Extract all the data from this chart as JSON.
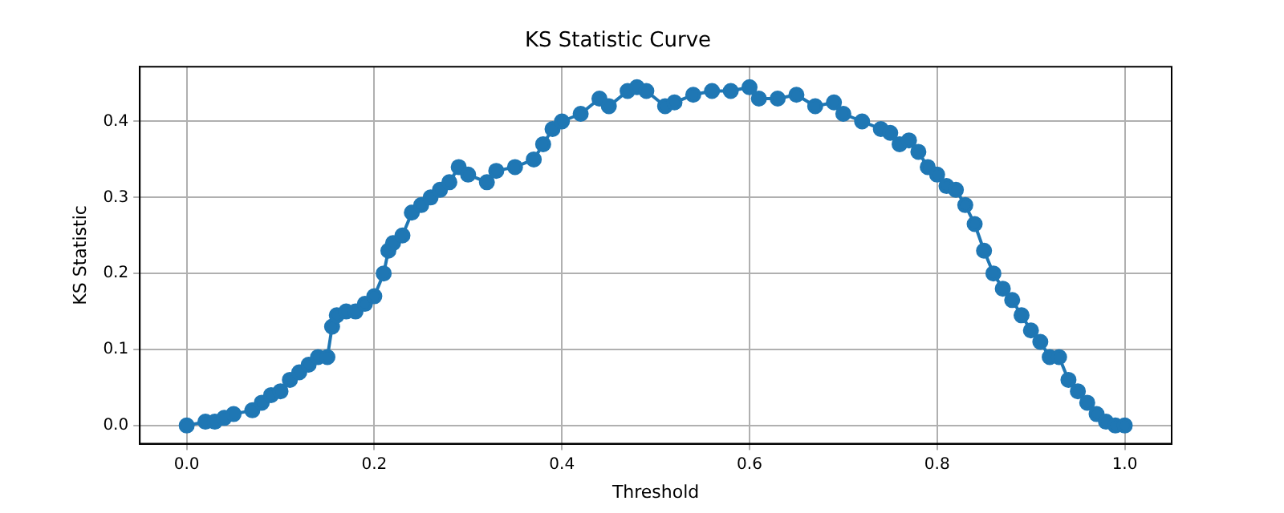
{
  "chart_data": {
    "type": "line",
    "title": "KS Statistic Curve",
    "xlabel": "Threshold",
    "ylabel": "KS Statistic",
    "x": [
      0,
      0.02,
      0.03,
      0.04,
      0.05,
      0.07,
      0.08,
      0.09,
      0.1,
      0.11,
      0.12,
      0.13,
      0.14,
      0.15,
      0.155,
      0.16,
      0.17,
      0.18,
      0.19,
      0.2,
      0.21,
      0.215,
      0.22,
      0.23,
      0.24,
      0.25,
      0.26,
      0.27,
      0.28,
      0.29,
      0.3,
      0.32,
      0.33,
      0.35,
      0.37,
      0.38,
      0.39,
      0.4,
      0.42,
      0.44,
      0.45,
      0.47,
      0.48,
      0.49,
      0.51,
      0.52,
      0.54,
      0.56,
      0.58,
      0.6,
      0.61,
      0.63,
      0.65,
      0.67,
      0.69,
      0.7,
      0.72,
      0.74,
      0.75,
      0.76,
      0.77,
      0.78,
      0.79,
      0.8,
      0.81,
      0.82,
      0.83,
      0.84,
      0.85,
      0.86,
      0.87,
      0.88,
      0.89,
      0.9,
      0.91,
      0.92,
      0.93,
      0.94,
      0.95,
      0.96,
      0.97,
      0.98,
      0.99,
      1.0
    ],
    "series": [
      {
        "color": "#1f77b4",
        "values": [
          0,
          0.005,
          0.005,
          0.01,
          0.015,
          0.02,
          0.03,
          0.04,
          0.045,
          0.06,
          0.07,
          0.08,
          0.09,
          0.09,
          0.13,
          0.145,
          0.15,
          0.15,
          0.16,
          0.17,
          0.2,
          0.23,
          0.24,
          0.25,
          0.28,
          0.29,
          0.3,
          0.31,
          0.32,
          0.34,
          0.33,
          0.32,
          0.335,
          0.34,
          0.35,
          0.37,
          0.39,
          0.4,
          0.41,
          0.43,
          0.42,
          0.44,
          0.445,
          0.44,
          0.42,
          0.425,
          0.435,
          0.44,
          0.44,
          0.445,
          0.43,
          0.43,
          0.435,
          0.42,
          0.425,
          0.41,
          0.4,
          0.39,
          0.385,
          0.37,
          0.375,
          0.36,
          0.34,
          0.33,
          0.315,
          0.31,
          0.29,
          0.265,
          0.23,
          0.2,
          0.18,
          0.165,
          0.145,
          0.125,
          0.11,
          0.09,
          0.09,
          0.06,
          0.045,
          0.03,
          0.015,
          0.005,
          0,
          0
        ]
      }
    ],
    "xlim": [
      -0.05,
      1.05
    ],
    "ylim": [
      -0.024,
      0.472
    ],
    "xticks": [
      {
        "value": 0,
        "label": "0.0"
      },
      0.2,
      0.4,
      0.6,
      0.8,
      {
        "value": 1,
        "label": "1.0"
      }
    ],
    "yticks": [
      {
        "value": 0,
        "label": "0.0"
      },
      0.1,
      0.2,
      0.3,
      0.4
    ],
    "grid": true,
    "marker": "circle",
    "line_style": "solid",
    "legend": false
  }
}
